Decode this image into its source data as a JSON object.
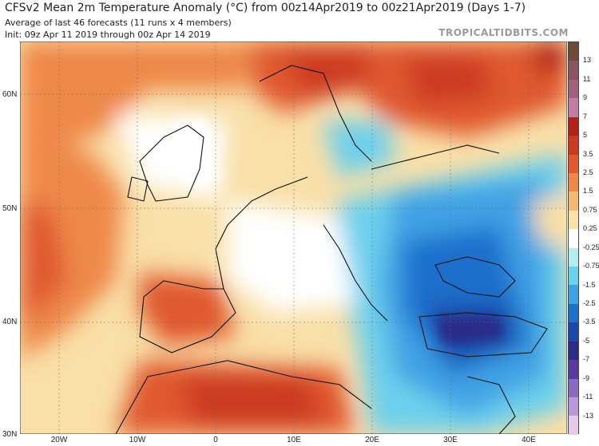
{
  "header": {
    "title": "CFSv2 Mean 2m Temperature Anomaly (°C) from 00z14Apr2019 to 00z21Apr2019 (Days 1-7)",
    "subtitle": "Average of last 46 forecasts (11 runs x 4 members)",
    "init": "Init: 09z Apr 11 2019 through 00z Apr 14 2019",
    "brand": "TROPICALTIDBITS.COM"
  },
  "map": {
    "lat_labels": [
      "60N",
      "50N",
      "40N",
      "30N"
    ],
    "lon_labels": [
      "20W",
      "10W",
      "0",
      "10E",
      "20E",
      "30E",
      "40E"
    ]
  },
  "colorbar": {
    "labels": [
      "13",
      "11",
      "9",
      "7",
      "5",
      "3.5",
      "2.5",
      "1.5",
      "0.75",
      "0.25",
      "-0.25",
      "-0.75",
      "-1.5",
      "-2.5",
      "-3.5",
      "-5",
      "-7",
      "-9",
      "-11",
      "-13"
    ],
    "colors": [
      "#6e4a3a",
      "#8a5463",
      "#a2607f",
      "#c07fa0",
      "#b22018",
      "#cc3a22",
      "#e0582e",
      "#ee8848",
      "#f4b870",
      "#f9dfa8",
      "#ffffff",
      "#b0eef0",
      "#6dd0ec",
      "#3fa2e4",
      "#1f70cc",
      "#1e48a8",
      "#2a2c88",
      "#5a3aa0",
      "#8a6ac0",
      "#b89ad8",
      "#e8c8e8"
    ]
  }
}
